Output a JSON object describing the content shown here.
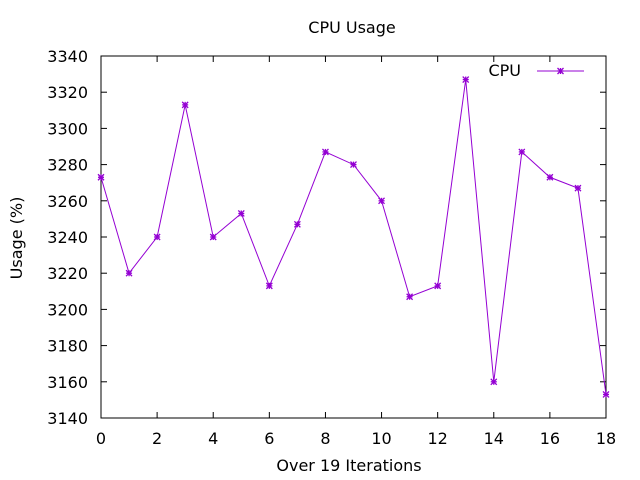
{
  "chart_data": {
    "type": "line",
    "title": "CPU Usage",
    "xlabel": "Over 19 Iterations",
    "ylabel": "Usage (%)",
    "xlim": [
      0,
      18
    ],
    "ylim": [
      3140,
      3340
    ],
    "xticks": [
      0,
      2,
      4,
      6,
      8,
      10,
      12,
      14,
      16,
      18
    ],
    "yticks": [
      3140,
      3160,
      3180,
      3200,
      3220,
      3240,
      3260,
      3280,
      3300,
      3320,
      3340
    ],
    "grid": false,
    "legend": "top-right",
    "series": [
      {
        "name": "CPU",
        "color": "#9400d3",
        "x": [
          0,
          1,
          2,
          3,
          4,
          5,
          6,
          7,
          8,
          9,
          10,
          11,
          12,
          13,
          14,
          15,
          16,
          17,
          18
        ],
        "values": [
          3273,
          3220,
          3240,
          3313,
          3240,
          3253,
          3213,
          3247,
          3287,
          3280,
          3260,
          3207,
          3213,
          3327,
          3160,
          3287,
          3273,
          3267,
          3153
        ]
      }
    ]
  }
}
